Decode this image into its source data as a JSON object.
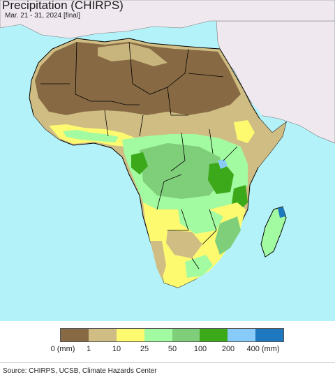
{
  "header": {
    "title": "Precipitation (CHIRPS)",
    "subtitle": "Mar. 21 - 31, 2024 [final]"
  },
  "legend": {
    "colors": [
      "#876a43",
      "#cfbd84",
      "#fdfa70",
      "#a2fba0",
      "#7fcf7a",
      "#3ca91a",
      "#89cbf8",
      "#1d78c0"
    ],
    "ticks": [
      "0 (mm)",
      "1",
      "10",
      "25",
      "50",
      "100",
      "200",
      "400 (mm)"
    ]
  },
  "footer": {
    "source": "Source: CHIRPS, UCSB, Climate Hazards Center"
  },
  "map_colors": {
    "ocean": "#b4f2fa",
    "no_data_land": "#efe9ef",
    "border": "#000000"
  }
}
